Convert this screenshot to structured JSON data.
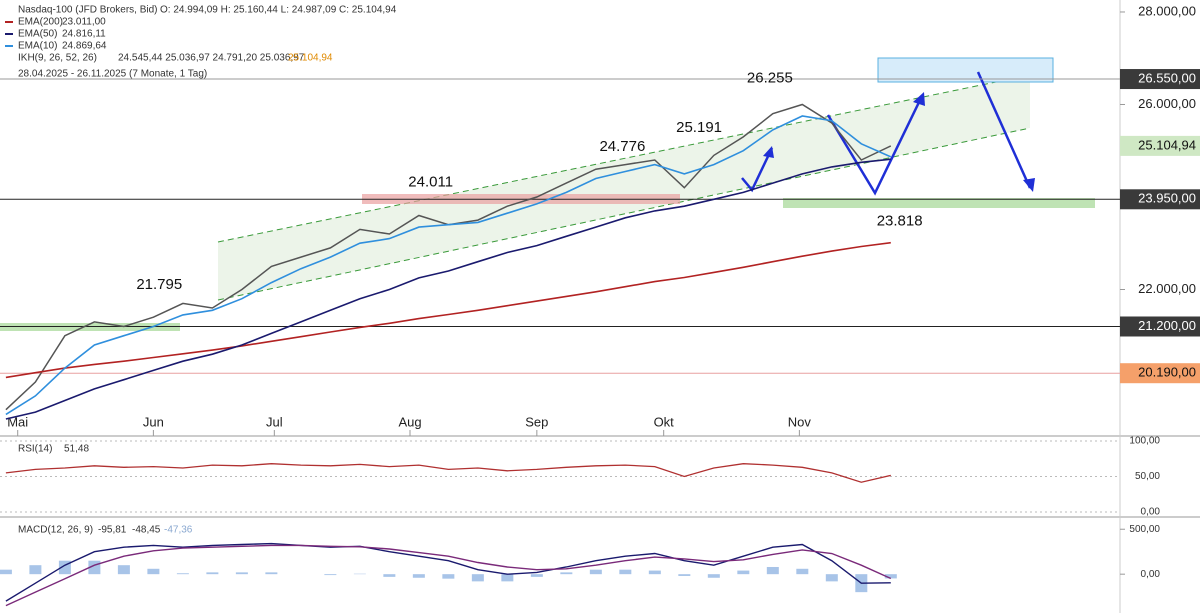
{
  "chart_data": {
    "type": "line",
    "header": {
      "instrument": "Nasdaq-100 (JFD Brokers, Bid)",
      "ohlc": "O: 24.994,09   H: 25.160,44   L: 24.987,09   C: 25.104,94",
      "ikh_name": "IKH(9, 26, 52, 26)",
      "ikh_values": "24.545,44   25.036,97   24.791,20   25.036,97",
      "ikh_last": "25.104,94",
      "range": "28.04.2025 - 26.11.2025   (7 Monate, 1 Tag)"
    },
    "x": [
      0,
      1,
      2,
      3,
      4,
      5,
      6,
      7,
      8,
      9,
      10,
      11,
      12,
      13,
      14,
      15,
      16,
      17,
      18,
      19,
      20,
      21,
      22,
      23,
      24,
      25,
      26,
      27,
      28,
      29,
      30
    ],
    "xlim": [
      -0.2,
      37.77
    ],
    "xticks": [
      {
        "value": 0.4,
        "label": "Mai"
      },
      {
        "value": 5,
        "label": "Jun"
      },
      {
        "value": 9.1,
        "label": "Jul"
      },
      {
        "value": 13.7,
        "label": "Aug"
      },
      {
        "value": 18,
        "label": "Sep"
      },
      {
        "value": 22.3,
        "label": "Okt"
      },
      {
        "value": 26.9,
        "label": "Nov"
      }
    ],
    "ylim": [
      18854,
      28259
    ],
    "yticks": [
      {
        "value": 28000,
        "label": "28.000,00"
      },
      {
        "value": 26000,
        "label": "26.000,00"
      },
      {
        "value": 22000,
        "label": "22.000,00"
      }
    ],
    "series": [
      {
        "name": "Nasdaq-100",
        "color": "#555555",
        "values": [
          19400,
          20000,
          21000,
          21300,
          21200,
          21400,
          21700,
          21600,
          22000,
          22500,
          22700,
          22900,
          23300,
          23200,
          23600,
          23400,
          23500,
          23800,
          24000,
          24300,
          24600,
          24700,
          24800,
          24200,
          24900,
          25300,
          25800,
          26000,
          25600,
          24800,
          25104.94
        ]
      },
      {
        "name": "EMA(200)",
        "legend_value": "23.011,00",
        "color": "#b22222",
        "values": [
          20100,
          20200,
          20300,
          20380,
          20450,
          20530,
          20610,
          20690,
          20780,
          20880,
          20980,
          21080,
          21180,
          21270,
          21370,
          21460,
          21550,
          21650,
          21750,
          21850,
          21950,
          22060,
          22170,
          22260,
          22370,
          22480,
          22600,
          22720,
          22830,
          22930,
          23011
        ]
      },
      {
        "name": "EMA(50)",
        "legend_value": "24.816,11",
        "color": "#1a1a6e",
        "values": [
          19200,
          19350,
          19600,
          19850,
          20050,
          20250,
          20450,
          20600,
          20800,
          21050,
          21300,
          21550,
          21800,
          22000,
          22250,
          22400,
          22600,
          22800,
          22950,
          23150,
          23350,
          23550,
          23700,
          23800,
          23950,
          24100,
          24300,
          24500,
          24650,
          24750,
          24816.11
        ]
      },
      {
        "name": "EMA(10)",
        "legend_value": "24.869,64",
        "color": "#2f8fdd",
        "values": [
          19300,
          19700,
          20300,
          20800,
          21000,
          21200,
          21450,
          21550,
          21800,
          22150,
          22450,
          22700,
          23000,
          23100,
          23350,
          23400,
          23450,
          23650,
          23850,
          24100,
          24400,
          24550,
          24700,
          24500,
          24700,
          25000,
          25450,
          25750,
          25650,
          25150,
          24869.64
        ]
      }
    ],
    "levels": [
      {
        "value": 26550,
        "label": "26.550,00",
        "color": "#3a3a3a",
        "text_color": "#ffffff",
        "line": "#999999"
      },
      {
        "value": 25104.94,
        "label": "25.104,94",
        "color": "#cfe8c4",
        "text_color": "#111111",
        "line": "none"
      },
      {
        "value": 23950,
        "label": "23.950,00",
        "color": "#3a3a3a",
        "text_color": "#ffffff",
        "line": "#222222"
      },
      {
        "value": 21200,
        "label": "21.200,00",
        "color": "#3a3a3a",
        "text_color": "#ffffff",
        "line": "#222222"
      },
      {
        "value": 20190,
        "label": "20.190,00",
        "color": "#f5a06a",
        "text_color": "#111111",
        "line": "#e8a0a0"
      }
    ],
    "annotations": [
      {
        "x": 5.2,
        "value": 21795,
        "label": "21.795",
        "pos": "above"
      },
      {
        "x": 14.4,
        "value": 24011,
        "label": "24.011",
        "pos": "above"
      },
      {
        "x": 20.9,
        "value": 24776,
        "label": "24.776",
        "pos": "above"
      },
      {
        "x": 23.5,
        "value": 25191,
        "label": "25.191",
        "pos": "above"
      },
      {
        "x": 25.9,
        "value": 26255,
        "label": "26.255",
        "pos": "above"
      },
      {
        "x": 30.3,
        "value": 23818,
        "label": "23.818",
        "pos": "below"
      }
    ],
    "rsi": {
      "name": "RSI(14)",
      "legend_value": "51,48",
      "color": "#b03030",
      "ylim": [
        -4.2,
        105.6
      ],
      "yticks": [
        {
          "value": 100,
          "label": "100,00"
        },
        {
          "value": 50,
          "label": "50,00"
        },
        {
          "value": 0,
          "label": "0,00"
        }
      ],
      "values": [
        55,
        60,
        62,
        65,
        63,
        64,
        62,
        66,
        65,
        68,
        66,
        65,
        67,
        64,
        66,
        60,
        62,
        58,
        60,
        63,
        65,
        66,
        64,
        50,
        62,
        68,
        66,
        63,
        55,
        42,
        51.48
      ]
    },
    "macd": {
      "name": "MACD(12, 26, 9)",
      "legend_value": "-95,81",
      "signal_legend_value": "-48,45",
      "hist_legend_value": "-47,36",
      "ylim": [
        -432,
        625
      ],
      "yticks": [
        {
          "value": 500,
          "label": "500,00"
        },
        {
          "value": 0,
          "label": "0,00"
        }
      ],
      "macd": [
        -300,
        -100,
        100,
        250,
        300,
        320,
        300,
        320,
        330,
        340,
        320,
        300,
        310,
        250,
        200,
        150,
        50,
        0,
        20,
        80,
        150,
        200,
        230,
        150,
        100,
        200,
        300,
        330,
        150,
        -100,
        -95.81
      ],
      "signal": [
        -350,
        -200,
        -50,
        100,
        200,
        260,
        290,
        300,
        310,
        320,
        320,
        310,
        305,
        280,
        240,
        200,
        130,
        80,
        50,
        60,
        100,
        150,
        190,
        170,
        140,
        160,
        220,
        270,
        230,
        100,
        -48.45
      ],
      "hist": [
        50,
        100,
        150,
        150,
        100,
        60,
        10,
        20,
        20,
        20,
        0,
        -10,
        5,
        -30,
        -40,
        -50,
        -80,
        -80,
        -30,
        20,
        50,
        50,
        40,
        -20,
        -40,
        40,
        80,
        60,
        -80,
        -200,
        -47.36
      ],
      "macd_color": "#1a1a6e",
      "signal_color": "#7a2a7a",
      "hist_color": "#a8c4e8"
    }
  }
}
